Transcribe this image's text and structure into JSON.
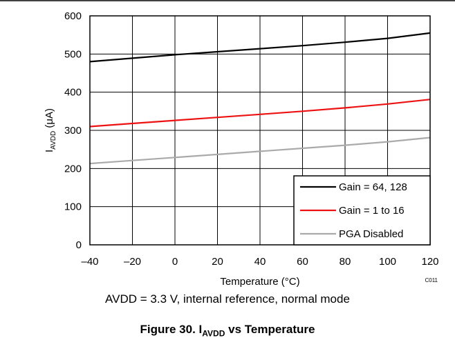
{
  "chart_data": {
    "type": "line",
    "xlabel": "Temperature (°C)",
    "ylabel_main": "I",
    "ylabel_sub": "AVDD",
    "ylabel_unit": " (μA)",
    "xlim": [
      -40,
      120
    ],
    "ylim": [
      0,
      600
    ],
    "x_ticks": [
      -40,
      -20,
      0,
      20,
      40,
      60,
      80,
      100,
      120
    ],
    "x_tick_labels": [
      "–40",
      "–20",
      "0",
      "20",
      "40",
      "60",
      "80",
      "100",
      "120"
    ],
    "y_ticks": [
      0,
      100,
      200,
      300,
      400,
      500,
      600
    ],
    "y_tick_labels": [
      "0",
      "100",
      "200",
      "300",
      "400",
      "500",
      "600"
    ],
    "grid": true,
    "legend_position": "bottom-right",
    "series": [
      {
        "name": "Gain = 64, 128",
        "color": "#000000",
        "x": [
          -40,
          -20,
          0,
          20,
          40,
          60,
          80,
          100,
          120
        ],
        "y": [
          480,
          489,
          498,
          506,
          514,
          522,
          531,
          541,
          555
        ]
      },
      {
        "name": "Gain = 1 to 16",
        "color": "#ee1111",
        "x": [
          -40,
          -20,
          0,
          20,
          40,
          60,
          80,
          100,
          120
        ],
        "y": [
          310,
          318,
          326,
          334,
          342,
          350,
          359,
          369,
          381
        ]
      },
      {
        "name": "PGA Disabled",
        "color": "#aaaaaa",
        "x": [
          -40,
          -20,
          0,
          20,
          40,
          60,
          80,
          100,
          120
        ],
        "y": [
          213,
          221,
          229,
          237,
          245,
          253,
          261,
          270,
          281
        ]
      }
    ],
    "code": "C011"
  },
  "subcaption": "AVDD = 3.3 V, internal reference, normal mode",
  "caption": {
    "prefix": "Figure 30. I",
    "sub": "AVDD",
    "suffix": " vs Temperature"
  }
}
